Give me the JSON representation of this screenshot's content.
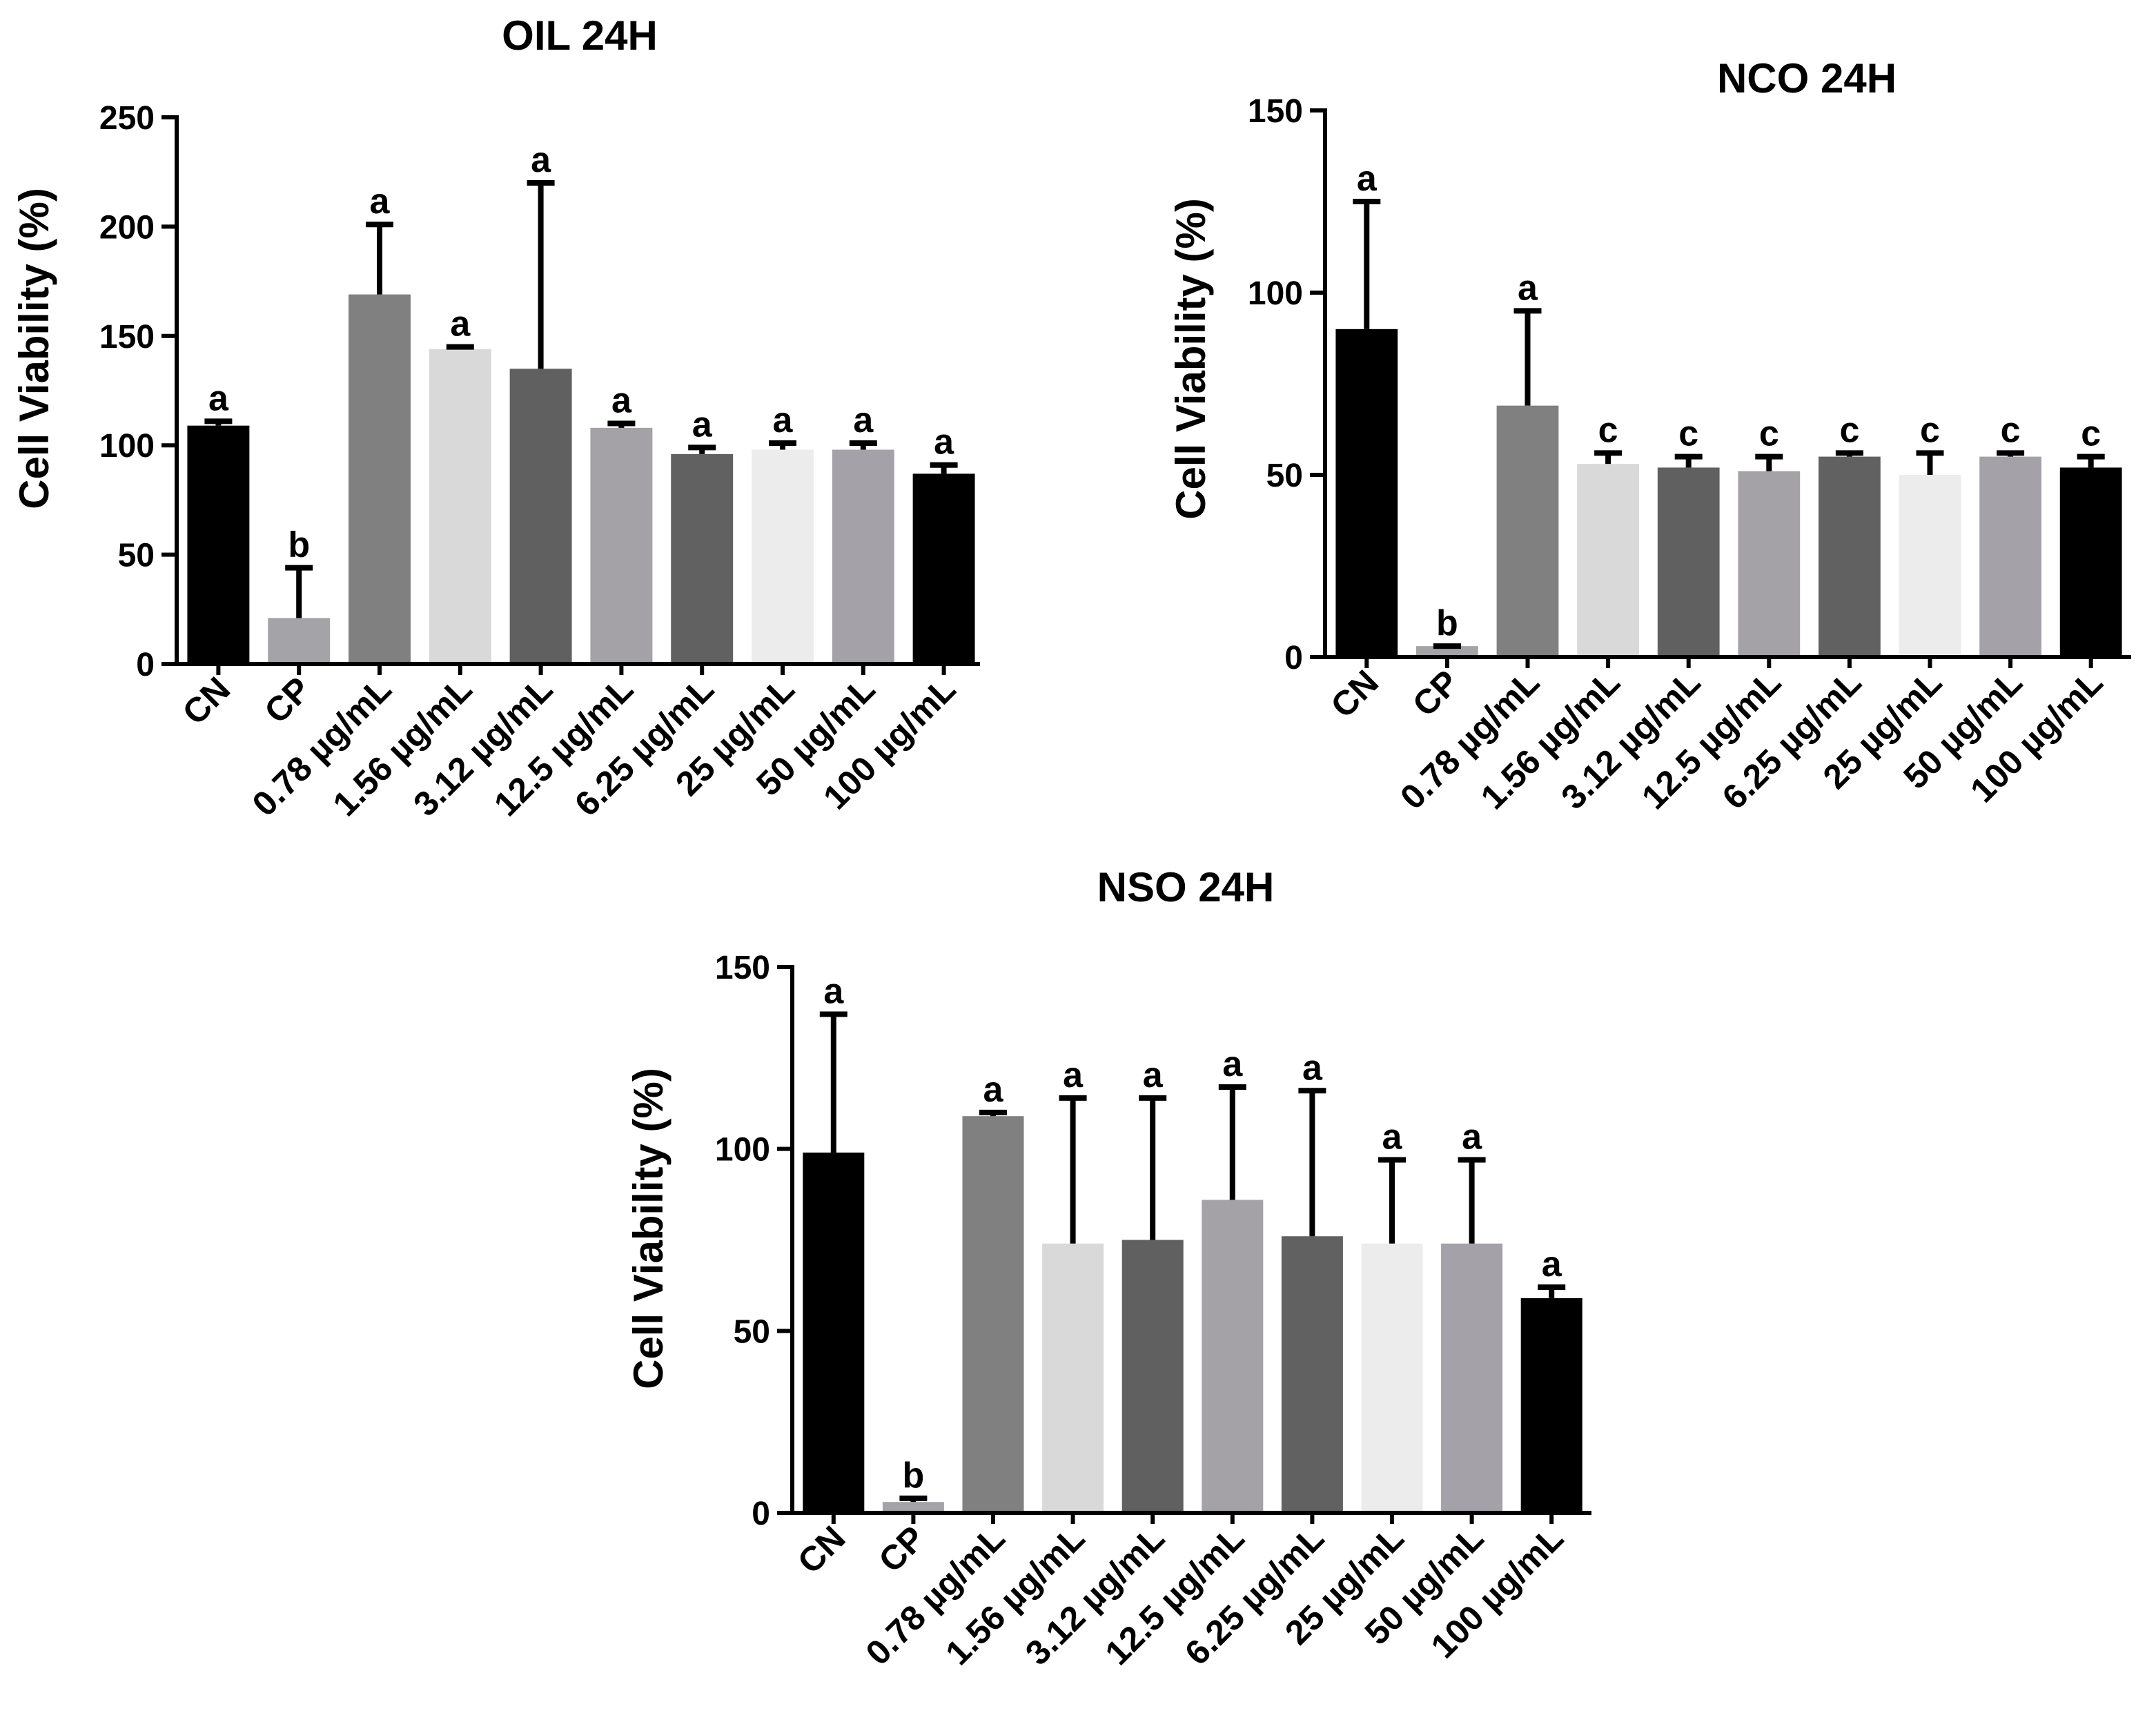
{
  "figure": {
    "background": "#ffffff",
    "axis_color": "#000000"
  },
  "bar_colors": [
    "#000000",
    "#a4a3a8",
    "#808080",
    "#d9d9d9",
    "#606060",
    "#a4a1a7",
    "#616161",
    "#ececec",
    "#a4a2a8",
    "#000000"
  ],
  "chart_data": [
    {
      "id": "oil",
      "type": "bar",
      "title": "OIL 24H",
      "xlabel": "",
      "ylabel": "Cell Viability (%)",
      "ylim": [
        0,
        250
      ],
      "yticks": [
        0,
        50,
        100,
        150,
        200,
        250
      ],
      "grid": false,
      "categories": [
        "CN",
        "CP",
        "0.78 µg/mL",
        "1.56 µg/mL",
        "3.12 µg/mL",
        "12.5 µg/mL",
        "6.25 µg/mL",
        "25 µg/mL",
        "50 µg/mL",
        "100 µg/mL"
      ],
      "values": [
        109,
        21,
        169,
        144,
        135,
        108,
        96,
        98,
        98,
        87
      ],
      "error_upper": [
        111,
        44,
        201,
        145,
        220,
        110,
        99,
        101,
        101,
        91
      ],
      "significance": [
        "a",
        "b",
        "a",
        "a",
        "a",
        "a",
        "a",
        "a",
        "a",
        "a"
      ]
    },
    {
      "id": "nco",
      "type": "bar",
      "title": "NCO 24H",
      "xlabel": "",
      "ylabel": "Cell Viability (%)",
      "ylim": [
        0,
        150
      ],
      "yticks": [
        0,
        50,
        100,
        150
      ],
      "grid": false,
      "categories": [
        "CN",
        "CP",
        "0.78 µg/mL",
        "1.56 µg/mL",
        "3.12 µg/mL",
        "12.5 µg/mL",
        "6.25 µg/mL",
        "25 µg/mL",
        "50 µg/mL",
        "100 µg/mL"
      ],
      "values": [
        90,
        3,
        69,
        53,
        52,
        51,
        55,
        50,
        55,
        52
      ],
      "error_upper": [
        125,
        3,
        95,
        56,
        55,
        55,
        56,
        56,
        56,
        55
      ],
      "significance": [
        "a",
        "b",
        "a",
        "c",
        "c",
        "c",
        "c",
        "c",
        "c",
        "c"
      ]
    },
    {
      "id": "nso",
      "type": "bar",
      "title": "NSO 24H",
      "xlabel": "",
      "ylabel": "Cell Viability (%)",
      "ylim": [
        0,
        150
      ],
      "yticks": [
        0,
        50,
        100,
        150
      ],
      "grid": false,
      "categories": [
        "CN",
        "CP",
        "0.78 µg/mL",
        "1.56 µg/mL",
        "3.12 µg/mL",
        "12.5 µg/mL",
        "6.25 µg/mL",
        "25 µg/mL",
        "50 µg/mL",
        "100 µg/mL"
      ],
      "values": [
        99,
        3,
        109,
        74,
        75,
        86,
        76,
        74,
        74,
        59
      ],
      "error_upper": [
        137,
        4,
        110,
        114,
        114,
        117,
        116,
        97,
        97,
        62
      ],
      "significance": [
        "a",
        "b",
        "a",
        "a",
        "a",
        "a",
        "a",
        "a",
        "a",
        "a"
      ]
    }
  ]
}
